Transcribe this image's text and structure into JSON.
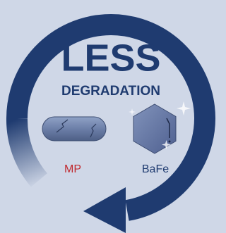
{
  "title": "LESS",
  "subtitle": "DEGRADATION",
  "items": [
    {
      "label": "MP"
    },
    {
      "label": "BaFe"
    }
  ]
}
